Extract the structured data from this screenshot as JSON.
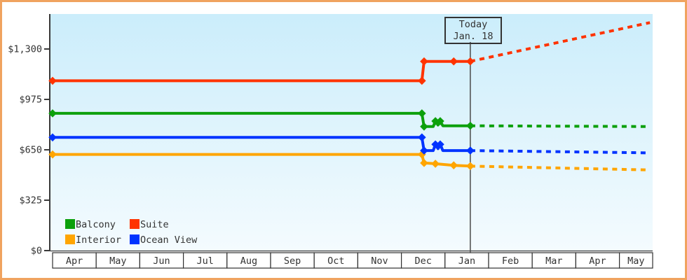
{
  "annotation": {
    "line1": "Today",
    "line2": "Jan. 18"
  },
  "legend_note": "legend built from chart_data.series names",
  "chart_data": {
    "type": "line",
    "title": "",
    "x_unit": "months after April 1 (0 = Apr, 13 = following May); solid = price history, dotted = forecast after today",
    "x_axis": {
      "months": [
        "Apr",
        "May",
        "Jun",
        "Jul",
        "Aug",
        "Sep",
        "Oct",
        "Nov",
        "Dec",
        "Jan",
        "Feb",
        "Mar",
        "Apr",
        "May"
      ]
    },
    "y_axis": {
      "min": 0,
      "max": 1300,
      "tick_step": 325,
      "ticks": [
        {
          "value": 0,
          "label": "$0"
        },
        {
          "value": 325,
          "label": "$325"
        },
        {
          "value": 650,
          "label": "$650"
        },
        {
          "value": 975,
          "label": "$975"
        },
        {
          "value": 1300,
          "label": "$1,300"
        }
      ]
    },
    "today": {
      "x": 9.58,
      "date_label": "Jan. 18"
    },
    "legend_position": "bottom-left inside plot",
    "grid": false,
    "series": [
      {
        "name": "Balcony",
        "color": "#0ca00c",
        "solid": [
          {
            "x": 0.0,
            "v": 885,
            "marker": true
          },
          {
            "x": 8.47,
            "v": 885,
            "marker": true
          },
          {
            "x": 8.52,
            "v": 800,
            "marker": true
          },
          {
            "x": 8.73,
            "v": 800,
            "marker": false
          },
          {
            "x": 8.78,
            "v": 835,
            "marker": true
          },
          {
            "x": 8.84,
            "v": 810,
            "marker": false
          },
          {
            "x": 8.89,
            "v": 835,
            "marker": true
          },
          {
            "x": 8.95,
            "v": 805,
            "marker": false
          },
          {
            "x": 9.58,
            "v": 805,
            "marker": true
          }
        ],
        "dotted": [
          {
            "x": 9.58,
            "v": 805
          },
          {
            "x": 13.7,
            "v": 800
          }
        ]
      },
      {
        "name": "Suite",
        "color": "#ff3300",
        "solid": [
          {
            "x": 0.0,
            "v": 1095,
            "marker": true
          },
          {
            "x": 8.47,
            "v": 1095,
            "marker": true
          },
          {
            "x": 8.52,
            "v": 1220,
            "marker": true
          },
          {
            "x": 9.2,
            "v": 1220,
            "marker": true
          },
          {
            "x": 9.58,
            "v": 1220,
            "marker": true
          }
        ],
        "dotted": [
          {
            "x": 9.58,
            "v": 1220
          },
          {
            "x": 13.7,
            "v": 1470
          }
        ]
      },
      {
        "name": "Interior",
        "color": "#ffa500",
        "solid": [
          {
            "x": 0.0,
            "v": 620,
            "marker": true
          },
          {
            "x": 8.47,
            "v": 620,
            "marker": true
          },
          {
            "x": 8.52,
            "v": 565,
            "marker": true
          },
          {
            "x": 8.78,
            "v": 560,
            "marker": true
          },
          {
            "x": 9.2,
            "v": 550,
            "marker": true
          },
          {
            "x": 9.58,
            "v": 545,
            "marker": true
          }
        ],
        "dotted": [
          {
            "x": 9.58,
            "v": 545
          },
          {
            "x": 13.7,
            "v": 520
          }
        ]
      },
      {
        "name": "Ocean View",
        "color": "#0033ff",
        "solid": [
          {
            "x": 0.0,
            "v": 730,
            "marker": true
          },
          {
            "x": 8.47,
            "v": 730,
            "marker": true
          },
          {
            "x": 8.52,
            "v": 645,
            "marker": true
          },
          {
            "x": 8.73,
            "v": 645,
            "marker": false
          },
          {
            "x": 8.78,
            "v": 685,
            "marker": true
          },
          {
            "x": 8.84,
            "v": 657,
            "marker": false
          },
          {
            "x": 8.89,
            "v": 685,
            "marker": true
          },
          {
            "x": 8.95,
            "v": 645,
            "marker": false
          },
          {
            "x": 9.58,
            "v": 645,
            "marker": true
          }
        ],
        "dotted": [
          {
            "x": 9.58,
            "v": 645
          },
          {
            "x": 13.7,
            "v": 630
          }
        ]
      }
    ],
    "colors": {
      "plot_bg_top": "#cbedfb",
      "plot_bg_bottom": "#f4fbfe",
      "axis": "#3a3a3a",
      "frame_border": "#f0a35f",
      "today_line": "#4a4a4a",
      "text": "#333333"
    }
  }
}
